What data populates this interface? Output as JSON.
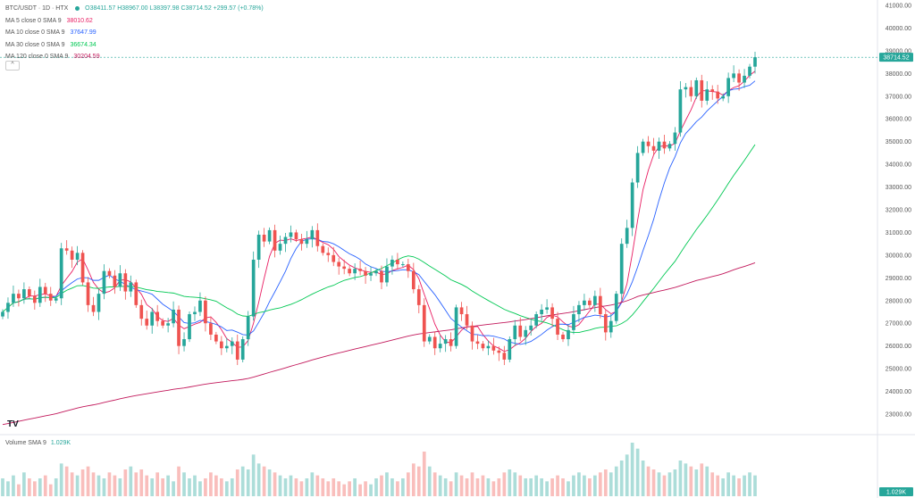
{
  "header": {
    "symbol": "BTC/USDT · 1D · HTX",
    "ohlc": "O38411.57 H38967.00 L38397.98 C38714.52 +299.57 (+0.78%)"
  },
  "indicators": [
    {
      "label": "MA 5 close 0 SMA 9",
      "value": "38010.62",
      "color": "#e91e63"
    },
    {
      "label": "MA 10 close 0 SMA 9",
      "value": "37647.99",
      "color": "#2962ff"
    },
    {
      "label": "MA 30 close 0 SMA 9",
      "value": "36674.34",
      "color": "#00c853"
    },
    {
      "label": "MA 120 close 0 SMA 9",
      "value": "30204.59",
      "color": "#c2185b"
    }
  ],
  "collapse_label": "^",
  "volume_legend": {
    "label": "Volume SMA 9",
    "value": "1.029K"
  },
  "logo_text": "TV",
  "colors": {
    "up": "#26a69a",
    "down": "#ef5350",
    "ma5": "#e91e63",
    "ma10": "#2962ff",
    "ma30": "#00c853",
    "ma120": "#c2185b"
  },
  "chart_data": {
    "type": "candlestick",
    "yaxis_ticks": [
      "41000.00",
      "40000.00",
      "39000.00",
      "38000.00",
      "37000.00",
      "36000.00",
      "35000.00",
      "34000.00",
      "33000.00",
      "32000.00",
      "31000.00",
      "30000.00",
      "29000.00",
      "28000.00",
      "27000.00",
      "26000.00",
      "25000.00",
      "24000.00",
      "23000.00"
    ],
    "ylim": [
      22000,
      41200
    ],
    "last_price": "38714.52",
    "volume_last": "1.029K",
    "close": [
      27500,
      27900,
      28300,
      28100,
      28500,
      28200,
      27900,
      28600,
      28300,
      28000,
      28100,
      30300,
      30200,
      29800,
      30100,
      28800,
      27800,
      27500,
      28300,
      29300,
      29100,
      28600,
      29200,
      28400,
      28800,
      27800,
      27200,
      26900,
      27500,
      27100,
      26900,
      27000,
      27600,
      26000,
      26300,
      27400,
      27500,
      28000,
      27000,
      26500,
      26200,
      25900,
      26000,
      26200,
      25400,
      26300,
      27300,
      29800,
      30900,
      30600,
      31100,
      30200,
      30500,
      30800,
      31000,
      30700,
      30500,
      30700,
      31100,
      30400,
      30100,
      30000,
      29700,
      29500,
      29400,
      29200,
      29400,
      29300,
      29100,
      29200,
      29300,
      28800,
      29500,
      29800,
      29600,
      29600,
      29300,
      28500,
      27800,
      26200,
      26400,
      25900,
      26100,
      26300,
      26000,
      27700,
      27400,
      26900,
      26200,
      26100,
      25900,
      26000,
      25800,
      25700,
      25400,
      26300,
      26900,
      26400,
      26700,
      26900,
      27400,
      27600,
      27700,
      27200,
      26500,
      26300,
      26700,
      27400,
      27800,
      28000,
      27800,
      28200,
      27400,
      26600,
      27100,
      28300,
      30500,
      31200,
      33200,
      34500,
      35000,
      34800,
      34600,
      35000,
      34700,
      34900,
      35400,
      37300,
      37400,
      37000,
      37700,
      36800,
      37300,
      37200,
      36900,
      37000,
      37800,
      38000,
      37600,
      37900,
      38300,
      38715
    ],
    "volume": [
      0.3,
      0.25,
      0.35,
      0.2,
      0.4,
      0.3,
      0.25,
      0.3,
      0.35,
      0.2,
      0.3,
      0.55,
      0.5,
      0.4,
      0.35,
      0.45,
      0.5,
      0.4,
      0.35,
      0.3,
      0.4,
      0.35,
      0.3,
      0.45,
      0.5,
      0.4,
      0.45,
      0.35,
      0.3,
      0.4,
      0.3,
      0.35,
      0.25,
      0.5,
      0.4,
      0.3,
      0.35,
      0.25,
      0.3,
      0.4,
      0.35,
      0.3,
      0.25,
      0.3,
      0.45,
      0.5,
      0.45,
      0.7,
      0.55,
      0.5,
      0.45,
      0.4,
      0.35,
      0.3,
      0.35,
      0.3,
      0.25,
      0.3,
      0.4,
      0.35,
      0.3,
      0.25,
      0.3,
      0.25,
      0.2,
      0.25,
      0.3,
      0.2,
      0.25,
      0.2,
      0.3,
      0.35,
      0.4,
      0.3,
      0.25,
      0.3,
      0.4,
      0.55,
      0.5,
      0.75,
      0.5,
      0.4,
      0.35,
      0.3,
      0.25,
      0.4,
      0.35,
      0.3,
      0.4,
      0.3,
      0.35,
      0.3,
      0.25,
      0.3,
      0.4,
      0.45,
      0.4,
      0.35,
      0.3,
      0.3,
      0.35,
      0.3,
      0.25,
      0.3,
      0.35,
      0.3,
      0.25,
      0.35,
      0.4,
      0.35,
      0.3,
      0.35,
      0.4,
      0.45,
      0.4,
      0.5,
      0.6,
      0.7,
      0.9,
      0.8,
      0.6,
      0.5,
      0.45,
      0.4,
      0.35,
      0.4,
      0.45,
      0.6,
      0.55,
      0.5,
      0.45,
      0.55,
      0.5,
      0.4,
      0.35,
      0.3,
      0.4,
      0.35,
      0.3,
      0.35,
      0.4,
      0.35
    ]
  }
}
